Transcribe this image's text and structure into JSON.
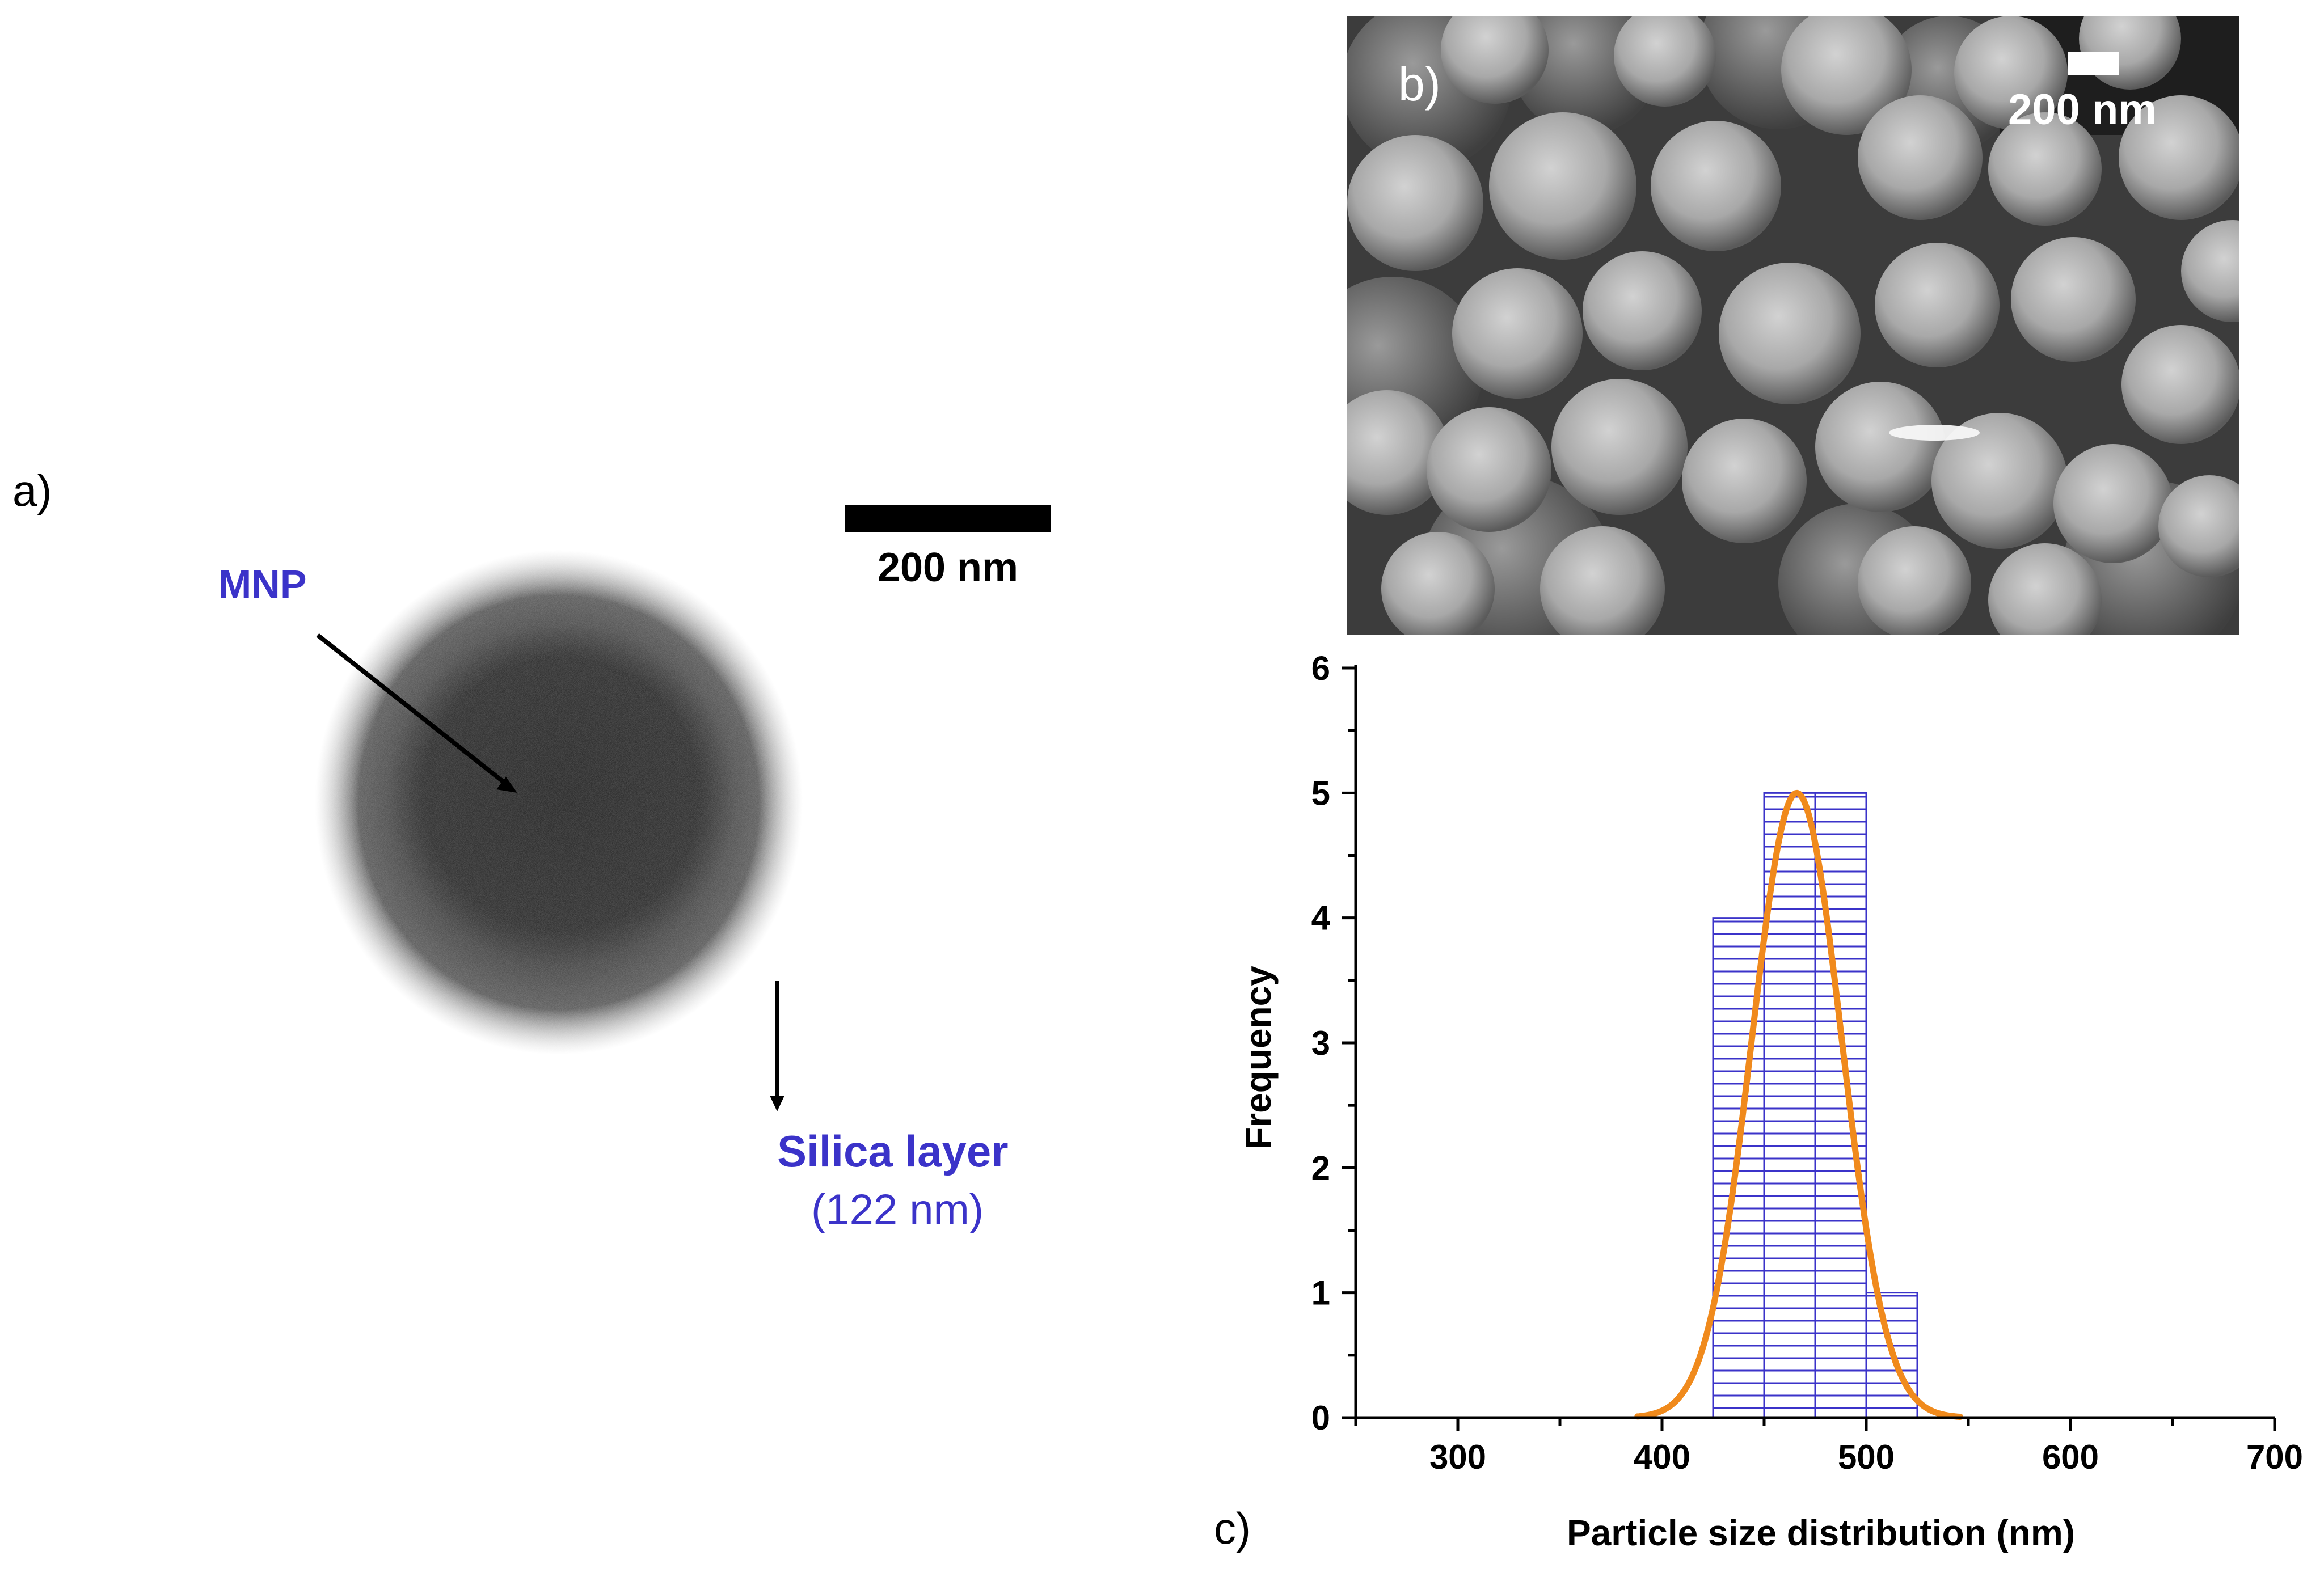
{
  "figure": {
    "panel_a": {
      "label": "a)",
      "scale_bar_label": "200 nm",
      "mnp_label": "MNP",
      "silica_label": "Silica layer",
      "silica_value": "(122 nm)"
    },
    "panel_b": {
      "label": "b)",
      "scale_bar_label": "200 nm"
    },
    "panel_c": {
      "label": "c)"
    }
  },
  "colors": {
    "bar_stroke": "#3b33c9",
    "fit_curve": "#f08a1c",
    "annotation_blue": "#3b33c9"
  },
  "chart_data": {
    "type": "bar",
    "title": "",
    "xlabel": "Particle size distribution (nm)",
    "ylabel": "Frequency",
    "xlim": [
      250,
      700
    ],
    "ylim": [
      0,
      6
    ],
    "xticks": [
      300,
      400,
      500,
      600,
      700
    ],
    "yticks": [
      0,
      1,
      2,
      3,
      4,
      5,
      6
    ],
    "bins": [
      {
        "start": 425,
        "end": 450,
        "value": 4
      },
      {
        "start": 450,
        "end": 475,
        "value": 5
      },
      {
        "start": 475,
        "end": 500,
        "value": 5
      },
      {
        "start": 500,
        "end": 525,
        "value": 1
      }
    ],
    "fit": {
      "type": "gaussian",
      "center": 466,
      "amplitude": 5,
      "sigma": 22,
      "x_range": [
        388,
        546
      ]
    }
  }
}
